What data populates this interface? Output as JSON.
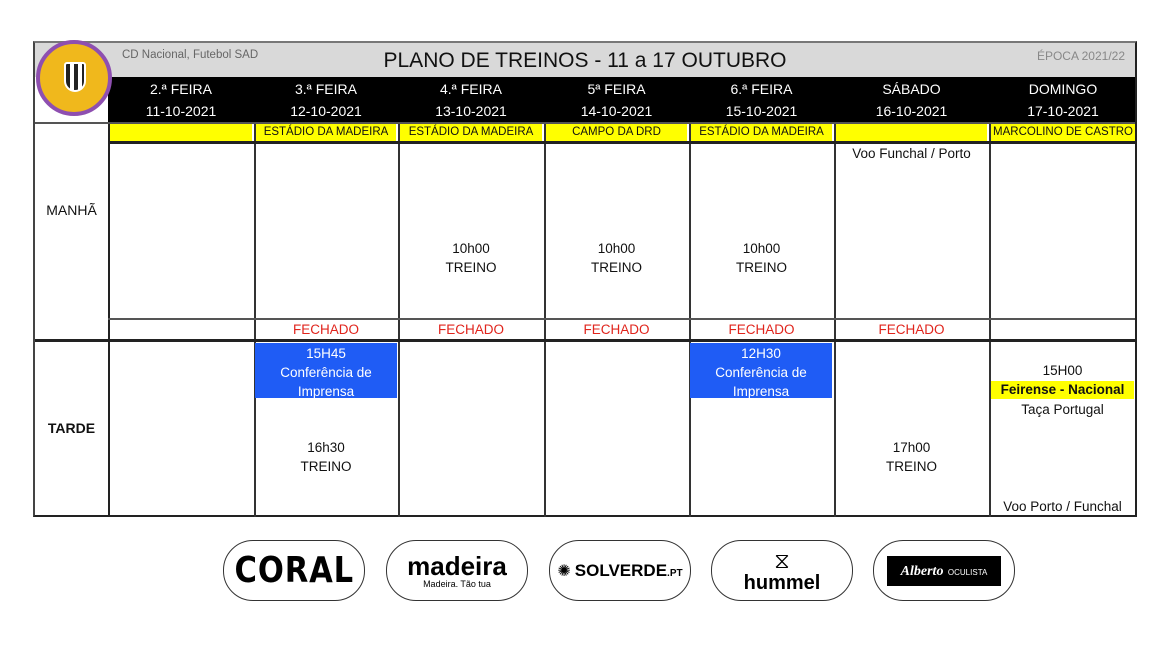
{
  "header": {
    "club": "CD Nacional, Futebol SAD",
    "title": "PLANO DE TREINOS - 11 a 17 OUTUBRO",
    "season": "ÉPOCA 2021/22",
    "logo_text": "C.D. NACIONAL MADEIRA"
  },
  "days": [
    {
      "name": "2.ª FEIRA",
      "date": "11-10-2021",
      "location": ""
    },
    {
      "name": "3.ª FEIRA",
      "date": "12-10-2021",
      "location": "ESTÁDIO DA MADEIRA"
    },
    {
      "name": "4.ª FEIRA",
      "date": "13-10-2021",
      "location": "ESTÁDIO DA MADEIRA"
    },
    {
      "name": "5ª FEIRA",
      "date": "14-10-2021",
      "location": "CAMPO DA DRD"
    },
    {
      "name": "6.ª FEIRA",
      "date": "15-10-2021",
      "location": "ESTÁDIO DA MADEIRA"
    },
    {
      "name": "SÁBADO",
      "date": "16-10-2021",
      "location": ""
    },
    {
      "name": "DOMINGO",
      "date": "17-10-2021",
      "location": "MARCOLINO DE CASTRO"
    }
  ],
  "rows": {
    "morning": "MANHÃ",
    "afternoon": "TARDE"
  },
  "morning": {
    "sat_note": "Voo Funchal / Porto",
    "wed": {
      "time": "10h00",
      "label": "TREINO"
    },
    "thu": {
      "time": "10h00",
      "label": "TREINO"
    },
    "fri": {
      "time": "10h00",
      "label": "TREINO"
    }
  },
  "status": {
    "closed": "FECHADO",
    "color": "#e0241c"
  },
  "afternoon": {
    "tue_press": {
      "time": "15H45",
      "label": "Conferência de Imprensa"
    },
    "tue_training": {
      "time": "16h30",
      "label": "TREINO"
    },
    "fri_press": {
      "time": "12H30",
      "label": "Conferência de Imprensa"
    },
    "sat_training": {
      "time": "17h00",
      "label": "TREINO"
    },
    "sun": {
      "time": "15H00",
      "match": "Feirense - Nacional",
      "competition": "Taça Portugal",
      "travel": "Voo Porto / Funchal"
    }
  },
  "colors": {
    "press": "#1f5cf5",
    "location": "#ffff00",
    "header": "#000000"
  },
  "sponsors": {
    "coral": "CORAL",
    "madeira": "madeira",
    "madeira_tag": "Madeira. Tão tua",
    "solverde": "SOLVERDE",
    "solverde_tld": ".PT",
    "hummel": "hummel",
    "alberto": "Alberto",
    "alberto_sub": "OCULISTA"
  }
}
